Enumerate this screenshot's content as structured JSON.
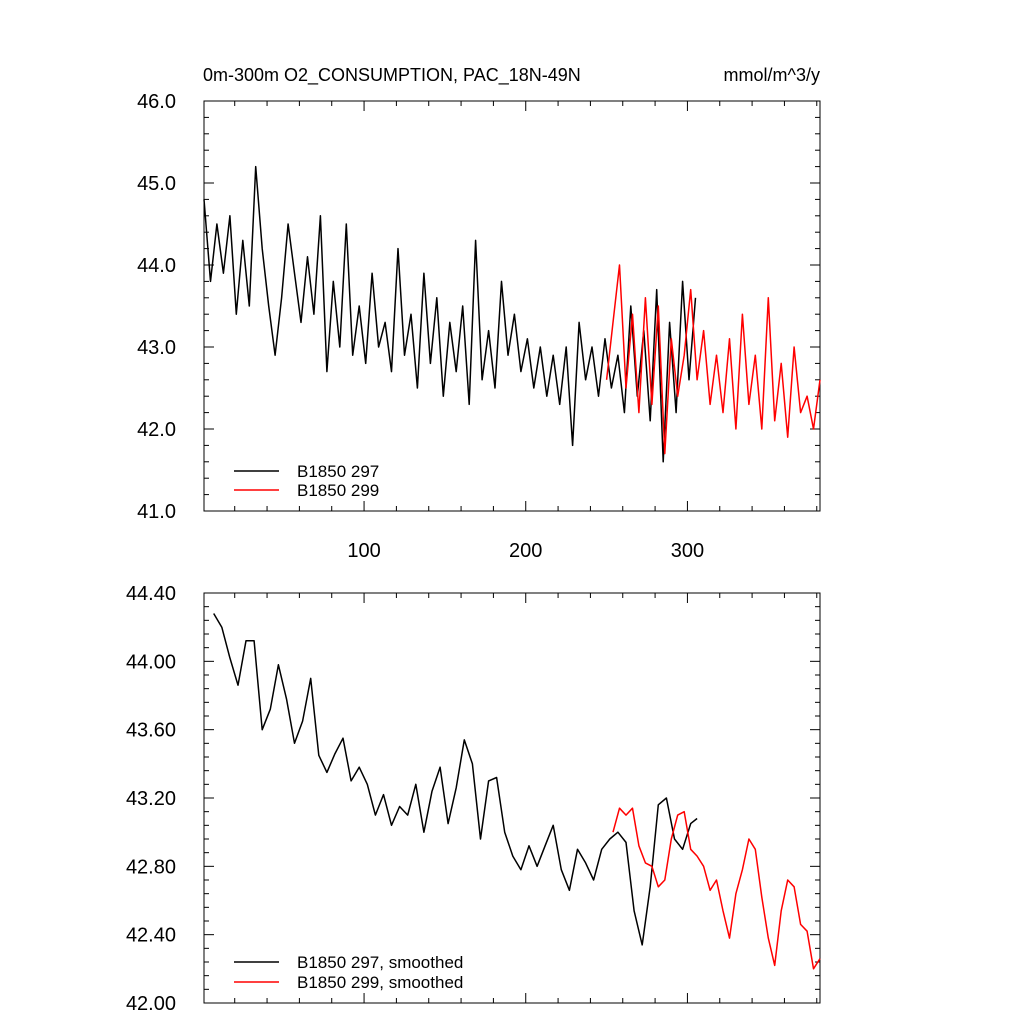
{
  "chart_data": [
    {
      "type": "line",
      "title": "0m-300m O2_CONSUMPTION, PAC_18N-49N",
      "units": "mmol/m^3/y",
      "xlim": [
        1,
        382
      ],
      "ylim": [
        41.0,
        46.0
      ],
      "xticks": [
        100,
        200,
        300
      ],
      "xtick_labels": [
        "100",
        "200",
        "300"
      ],
      "yticks": [
        41.0,
        42.0,
        43.0,
        44.0,
        45.0,
        46.0
      ],
      "ytick_labels": [
        "41.0",
        "42.0",
        "43.0",
        "44.0",
        "45.0",
        "46.0"
      ],
      "legend_position": "bottom-left",
      "series": [
        {
          "name": "B1850 297",
          "color": "#000000",
          "x": [
            1,
            5,
            9,
            13,
            17,
            21,
            25,
            29,
            33,
            37,
            41,
            45,
            49,
            53,
            57,
            61,
            65,
            69,
            73,
            77,
            81,
            85,
            89,
            93,
            97,
            101,
            105,
            109,
            113,
            117,
            121,
            125,
            129,
            133,
            137,
            141,
            145,
            149,
            153,
            157,
            161,
            165,
            169,
            173,
            177,
            181,
            185,
            189,
            193,
            197,
            201,
            205,
            209,
            213,
            217,
            221,
            225,
            229,
            233,
            237,
            241,
            245,
            249,
            253,
            257,
            261,
            265,
            269,
            273,
            277,
            281,
            285,
            289,
            293,
            297,
            301,
            305
          ],
          "values": [
            44.8,
            43.8,
            44.5,
            43.9,
            44.6,
            43.4,
            44.3,
            43.5,
            45.2,
            44.2,
            43.5,
            42.9,
            43.6,
            44.5,
            43.9,
            43.3,
            44.1,
            43.4,
            44.6,
            42.7,
            43.8,
            43.0,
            44.5,
            42.9,
            43.5,
            42.8,
            43.9,
            43.0,
            43.3,
            42.7,
            44.2,
            42.9,
            43.4,
            42.5,
            43.9,
            42.8,
            43.6,
            42.4,
            43.3,
            42.7,
            43.5,
            42.3,
            44.3,
            42.6,
            43.2,
            42.5,
            43.8,
            42.9,
            43.4,
            42.7,
            43.1,
            42.5,
            43.0,
            42.4,
            42.9,
            42.3,
            43.0,
            41.8,
            43.3,
            42.6,
            43.0,
            42.4,
            43.1,
            42.5,
            42.9,
            42.2,
            43.5,
            42.4,
            43.2,
            42.1,
            43.7,
            41.6,
            43.3,
            42.2,
            43.8,
            42.6,
            43.6
          ]
        },
        {
          "name": "B1850 299",
          "color": "#ff0000",
          "x": [
            250,
            254,
            258,
            262,
            266,
            270,
            274,
            278,
            282,
            286,
            290,
            294,
            298,
            302,
            306,
            310,
            314,
            318,
            322,
            326,
            330,
            334,
            338,
            342,
            346,
            350,
            354,
            358,
            362,
            366,
            370,
            374,
            378,
            382
          ],
          "values": [
            42.6,
            43.3,
            44.0,
            42.5,
            43.4,
            42.2,
            43.6,
            42.3,
            43.5,
            41.7,
            43.1,
            42.4,
            42.9,
            43.7,
            42.6,
            43.2,
            42.3,
            42.9,
            42.2,
            43.1,
            42.0,
            43.4,
            42.3,
            42.9,
            42.0,
            43.6,
            42.1,
            42.8,
            41.9,
            43.0,
            42.2,
            42.4,
            42.0,
            42.6
          ]
        }
      ]
    },
    {
      "type": "line",
      "xlim": [
        1,
        382
      ],
      "ylim": [
        42.0,
        44.4
      ],
      "xticks": [
        100,
        200,
        300
      ],
      "yticks": [
        42.0,
        42.4,
        42.8,
        43.2,
        43.6,
        44.0,
        44.4
      ],
      "ytick_labels": [
        "42.00",
        "42.40",
        "42.80",
        "43.20",
        "43.60",
        "44.00",
        "44.40"
      ],
      "legend_position": "bottom-left",
      "series": [
        {
          "name": "B1850 297, smoothed",
          "color": "#000000",
          "x": [
            7,
            12,
            17,
            22,
            27,
            32,
            37,
            42,
            47,
            52,
            57,
            62,
            67,
            72,
            77,
            82,
            87,
            92,
            97,
            102,
            107,
            112,
            117,
            122,
            127,
            132,
            137,
            142,
            147,
            152,
            157,
            162,
            167,
            172,
            177,
            182,
            187,
            192,
            197,
            202,
            207,
            212,
            217,
            222,
            227,
            232,
            237,
            242,
            247,
            252,
            257,
            262,
            267,
            272,
            277,
            282,
            287,
            292,
            297,
            302,
            306
          ],
          "values": [
            44.28,
            44.2,
            44.02,
            43.86,
            44.12,
            44.12,
            43.6,
            43.72,
            43.98,
            43.78,
            43.52,
            43.65,
            43.9,
            43.45,
            43.35,
            43.46,
            43.55,
            43.3,
            43.38,
            43.28,
            43.1,
            43.22,
            43.04,
            43.15,
            43.1,
            43.28,
            43.0,
            43.24,
            43.38,
            43.05,
            43.26,
            43.54,
            43.4,
            42.96,
            43.3,
            43.32,
            43.0,
            42.86,
            42.78,
            42.92,
            42.8,
            42.92,
            43.04,
            42.78,
            42.66,
            42.9,
            42.82,
            42.72,
            42.9,
            42.96,
            43.0,
            42.94,
            42.54,
            42.34,
            42.68,
            43.16,
            43.2,
            42.96,
            42.9,
            43.05,
            43.08
          ]
        },
        {
          "name": "B1850 299, smoothed",
          "color": "#ff0000",
          "x": [
            254,
            258,
            262,
            266,
            270,
            274,
            278,
            282,
            286,
            290,
            294,
            298,
            302,
            306,
            310,
            314,
            318,
            322,
            326,
            330,
            334,
            338,
            342,
            346,
            350,
            354,
            358,
            362,
            366,
            370,
            374,
            378,
            382
          ],
          "values": [
            43.0,
            43.14,
            43.1,
            43.14,
            42.92,
            42.82,
            42.8,
            42.68,
            42.72,
            42.96,
            43.1,
            43.12,
            42.9,
            42.86,
            42.8,
            42.66,
            42.72,
            42.54,
            42.38,
            42.64,
            42.78,
            42.96,
            42.9,
            42.62,
            42.38,
            42.22,
            42.54,
            42.72,
            42.68,
            42.46,
            42.42,
            42.2,
            42.26
          ]
        }
      ]
    }
  ]
}
